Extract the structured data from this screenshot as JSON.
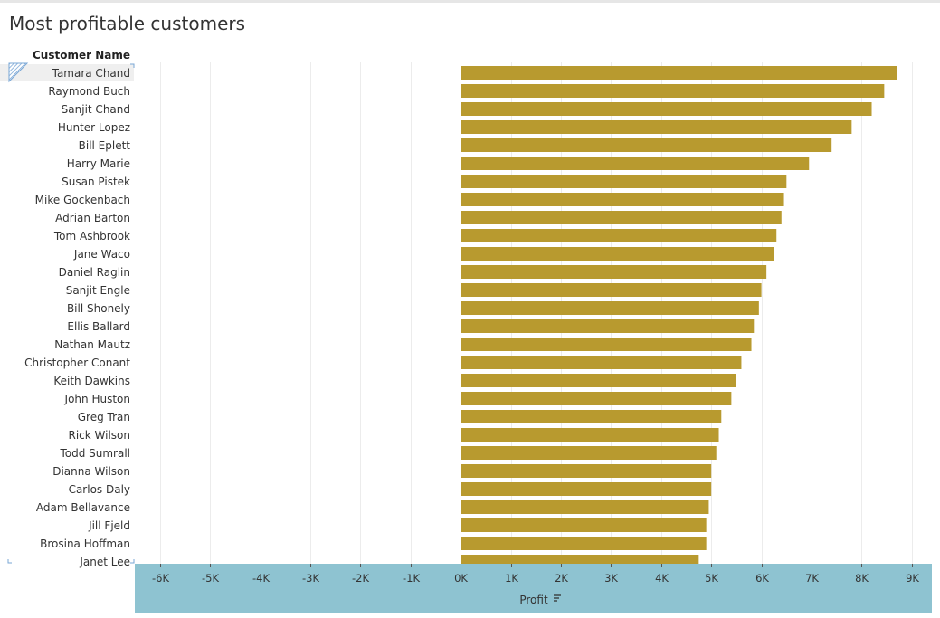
{
  "title": "Most profitable customers",
  "row_header": "Customer Name",
  "chart_data": {
    "type": "bar",
    "orientation": "horizontal",
    "title": "Most profitable customers",
    "ylabel": "Customer Name",
    "xlabel": "Profit",
    "xlim": [
      -6500,
      9400
    ],
    "xticks": [
      "-6K",
      "-5K",
      "-4K",
      "-3K",
      "-2K",
      "-1K",
      "0K",
      "1K",
      "2K",
      "3K",
      "4K",
      "5K",
      "6K",
      "7K",
      "8K",
      "9K"
    ],
    "grid": true,
    "bar_color": "#b89a2f",
    "axis_band_color": "#8ec3d1",
    "sorted": "descending",
    "categories": [
      "Tamara Chand",
      "Raymond Buch",
      "Sanjit Chand",
      "Hunter Lopez",
      "Bill Eplett",
      "Harry Marie",
      "Susan Pistek",
      "Mike Gockenbach",
      "Adrian Barton",
      "Tom Ashbrook",
      "Jane Waco",
      "Daniel Raglin",
      "Sanjit Engle",
      "Bill Shonely",
      "Ellis Ballard",
      "Nathan Mautz",
      "Christopher Conant",
      "Keith Dawkins",
      "John Huston",
      "Greg Tran",
      "Rick Wilson",
      "Todd Sumrall",
      "Dianna Wilson",
      "Carlos Daly",
      "Adam Bellavance",
      "Jill Fjeld",
      "Brosina Hoffman",
      "Janet Lee"
    ],
    "values": [
      8700,
      8450,
      8200,
      7800,
      7400,
      6950,
      6500,
      6450,
      6400,
      6300,
      6250,
      6100,
      6000,
      5950,
      5850,
      5800,
      5600,
      5500,
      5400,
      5200,
      5150,
      5100,
      5000,
      5000,
      4950,
      4900,
      4900,
      4750
    ]
  }
}
